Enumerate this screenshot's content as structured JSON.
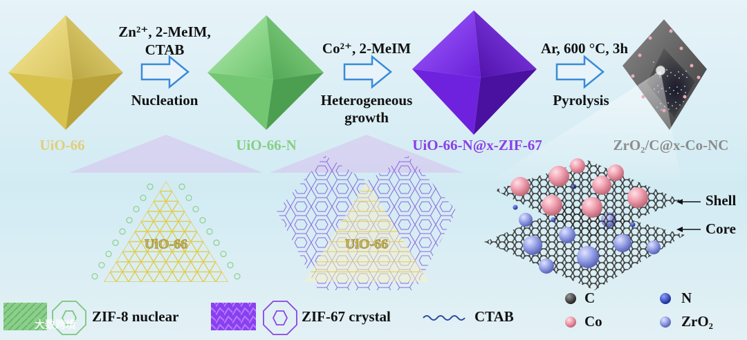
{
  "steps": [
    {
      "conditions": [
        "Zn²⁺, 2-MeIM,",
        "CTAB"
      ],
      "process": [
        "Nucleation"
      ]
    },
    {
      "conditions": [
        "Co²⁺, 2-MeIM"
      ],
      "process": [
        "Heterogeneous",
        "growth"
      ]
    },
    {
      "conditions": [
        "Ar, 600 °C, 3h"
      ],
      "process": [
        "Pyrolysis"
      ]
    }
  ],
  "products": [
    "UiO-66",
    "UiO-66-N",
    "UiO-66-N@x-ZIF-67",
    "ZrO₂/C@x-Co-NC"
  ],
  "insets": [
    "UiO-66",
    "UiO-66"
  ],
  "layers": {
    "shell": "Shell",
    "core": "Core"
  },
  "legend": [
    "ZIF-8 nuclear",
    "ZIF-67 crystal",
    "CTAB"
  ],
  "elements": [
    "C",
    "N",
    "Co",
    "ZrO₂"
  ],
  "watermark": "大数跨境"
}
